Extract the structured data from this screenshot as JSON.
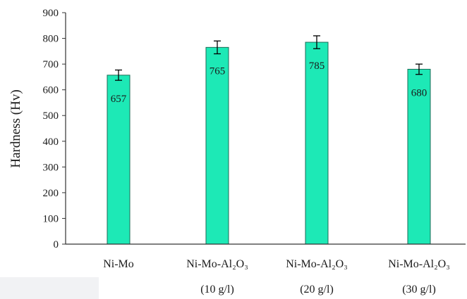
{
  "chart_data": {
    "type": "bar",
    "ylabel": "Hardness (Hv)",
    "ylim": [
      0,
      900
    ],
    "yticks": [
      0,
      100,
      200,
      300,
      400,
      500,
      600,
      700,
      800,
      900
    ],
    "categories": [
      {
        "line1": "Ni-Mo",
        "line2": ""
      },
      {
        "line1": "Ni-Mo-Al₂O₃",
        "line2": "(10 g/l)"
      },
      {
        "line1": "Ni-Mo-Al₂O₃",
        "line2": "(20 g/l)"
      },
      {
        "line1": "Ni-Mo-Al₂O₃",
        "line2": "(30 g/l)"
      }
    ],
    "values": [
      657,
      765,
      785,
      680
    ],
    "value_labels": [
      "657",
      "765",
      "785",
      "680"
    ],
    "error": [
      20,
      25,
      25,
      20
    ],
    "grid": false,
    "legend": "none",
    "colors": {
      "bar": "#1de9b6",
      "bar_edge": "#1b6b55",
      "axis": "#333333",
      "error_bar": "#000000"
    }
  }
}
